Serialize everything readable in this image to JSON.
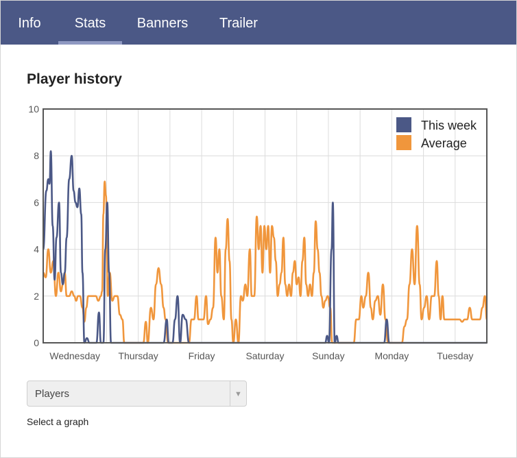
{
  "tabs": [
    {
      "label": "Info",
      "active": false
    },
    {
      "label": "Stats",
      "active": true
    },
    {
      "label": "Banners",
      "active": false
    },
    {
      "label": "Trailer",
      "active": false
    }
  ],
  "section_title": "Player history",
  "select": {
    "value": "Players",
    "caption": "Select a graph"
  },
  "colors": {
    "this_week": "#4b5886",
    "average": "#f0963c",
    "tabbar": "#4b5886"
  },
  "chart_data": {
    "type": "line",
    "yticks": [
      0,
      2,
      4,
      6,
      8,
      10
    ],
    "ylim": [
      0,
      10
    ],
    "xlim": [
      0,
      7
    ],
    "xtick_labels": [
      {
        "x": 0.5,
        "label": "Wednesday"
      },
      {
        "x": 1.5,
        "label": "Thursday"
      },
      {
        "x": 2.5,
        "label": "Friday"
      },
      {
        "x": 3.5,
        "label": "Saturday"
      },
      {
        "x": 4.5,
        "label": "Sunday"
      },
      {
        "x": 5.5,
        "label": "Monday"
      },
      {
        "x": 6.5,
        "label": "Tuesday"
      }
    ],
    "grid": true,
    "legend": "top-right",
    "series": [
      {
        "name": "This week",
        "color": "#4b5886",
        "points": [
          [
            0.0,
            4.0
          ],
          [
            0.05,
            6.5
          ],
          [
            0.08,
            7.0
          ],
          [
            0.1,
            6.8
          ],
          [
            0.12,
            8.2
          ],
          [
            0.15,
            5.0
          ],
          [
            0.18,
            2.7
          ],
          [
            0.21,
            4.5
          ],
          [
            0.25,
            6.0
          ],
          [
            0.28,
            3.0
          ],
          [
            0.31,
            2.5
          ],
          [
            0.34,
            3.0
          ],
          [
            0.37,
            4.5
          ],
          [
            0.41,
            7.0
          ],
          [
            0.45,
            8.0
          ],
          [
            0.48,
            6.5
          ],
          [
            0.51,
            6.0
          ],
          [
            0.54,
            5.8
          ],
          [
            0.57,
            6.6
          ],
          [
            0.6,
            5.5
          ],
          [
            0.62,
            3.0
          ],
          [
            0.65,
            0.0
          ],
          [
            0.69,
            0.2
          ],
          [
            0.73,
            0.0
          ],
          [
            0.84,
            0.0
          ],
          [
            0.88,
            1.3
          ],
          [
            0.91,
            0.0
          ],
          [
            0.95,
            0.0
          ],
          [
            0.98,
            4.0
          ],
          [
            1.01,
            6.0
          ],
          [
            1.04,
            3.0
          ],
          [
            1.07,
            0.0
          ],
          [
            1.12,
            0.0
          ],
          [
            1.9,
            0.0
          ],
          [
            1.95,
            1.0
          ],
          [
            1.98,
            0.0
          ],
          [
            2.04,
            0.0
          ],
          [
            2.08,
            1.0
          ],
          [
            2.12,
            2.0
          ],
          [
            2.16,
            0.0
          ],
          [
            2.2,
            1.2
          ],
          [
            2.25,
            1.0
          ],
          [
            2.3,
            0.0
          ],
          [
            2.35,
            0.0
          ],
          [
            4.45,
            0.0
          ],
          [
            4.48,
            0.3
          ],
          [
            4.51,
            0.0
          ],
          [
            4.55,
            4.0
          ],
          [
            4.57,
            6.0
          ],
          [
            4.6,
            0.0
          ],
          [
            4.63,
            0.3
          ],
          [
            4.66,
            0.0
          ],
          [
            5.38,
            0.0
          ],
          [
            5.42,
            1.0
          ],
          [
            5.46,
            0.0
          ],
          [
            7.0,
            0.0
          ]
        ]
      },
      {
        "name": "Average",
        "color": "#f0963c",
        "points": [
          [
            0.0,
            3.0
          ],
          [
            0.04,
            2.8
          ],
          [
            0.08,
            4.0
          ],
          [
            0.12,
            3.0
          ],
          [
            0.16,
            3.5
          ],
          [
            0.2,
            2.0
          ],
          [
            0.24,
            3.0
          ],
          [
            0.28,
            2.2
          ],
          [
            0.31,
            2.5
          ],
          [
            0.34,
            3.0
          ],
          [
            0.37,
            2.0
          ],
          [
            0.41,
            2.0
          ],
          [
            0.45,
            2.2
          ],
          [
            0.49,
            2.0
          ],
          [
            0.52,
            1.8
          ],
          [
            0.55,
            2.0
          ],
          [
            0.58,
            2.0
          ],
          [
            0.62,
            1.5
          ],
          [
            0.65,
            0.9
          ],
          [
            0.68,
            1.5
          ],
          [
            0.71,
            2.0
          ],
          [
            0.75,
            2.0
          ],
          [
            0.79,
            2.0
          ],
          [
            0.83,
            2.0
          ],
          [
            0.87,
            1.8
          ],
          [
            0.91,
            2.0
          ],
          [
            0.93,
            2.2
          ],
          [
            0.95,
            5.5
          ],
          [
            0.97,
            6.9
          ],
          [
            0.99,
            6.3
          ],
          [
            1.02,
            2.0
          ],
          [
            1.05,
            3.0
          ],
          [
            1.09,
            1.8
          ],
          [
            1.13,
            2.0
          ],
          [
            1.17,
            2.0
          ],
          [
            1.21,
            1.2
          ],
          [
            1.25,
            1.0
          ],
          [
            1.28,
            0.0
          ],
          [
            1.5,
            0.0
          ],
          [
            1.55,
            0.0
          ],
          [
            1.58,
            0.0
          ],
          [
            1.62,
            0.9
          ],
          [
            1.65,
            0.0
          ],
          [
            1.7,
            1.5
          ],
          [
            1.74,
            1.0
          ],
          [
            1.78,
            2.5
          ],
          [
            1.82,
            3.2
          ],
          [
            1.86,
            2.5
          ],
          [
            1.9,
            1.5
          ],
          [
            1.93,
            1.0
          ],
          [
            1.97,
            0.0
          ],
          [
            2.02,
            0.0
          ],
          [
            2.3,
            0.0
          ],
          [
            2.34,
            1.0
          ],
          [
            2.38,
            1.0
          ],
          [
            2.42,
            2.0
          ],
          [
            2.45,
            1.0
          ],
          [
            2.49,
            1.0
          ],
          [
            2.53,
            1.0
          ],
          [
            2.57,
            2.0
          ],
          [
            2.6,
            0.8
          ],
          [
            2.64,
            1.0
          ],
          [
            2.68,
            1.5
          ],
          [
            2.72,
            4.5
          ],
          [
            2.75,
            3.0
          ],
          [
            2.78,
            4.0
          ],
          [
            2.81,
            2.0
          ],
          [
            2.85,
            1.0
          ],
          [
            2.88,
            4.0
          ],
          [
            2.91,
            5.3
          ],
          [
            2.94,
            3.5
          ],
          [
            2.97,
            1.0
          ],
          [
            3.0,
            0.0
          ],
          [
            3.04,
            1.0
          ],
          [
            3.08,
            0.0
          ],
          [
            3.12,
            2.0
          ],
          [
            3.15,
            1.8
          ],
          [
            3.19,
            2.5
          ],
          [
            3.22,
            2.0
          ],
          [
            3.26,
            4.0
          ],
          [
            3.29,
            2.0
          ],
          [
            3.33,
            2.0
          ],
          [
            3.37,
            5.4
          ],
          [
            3.4,
            4.0
          ],
          [
            3.43,
            5.0
          ],
          [
            3.46,
            3.0
          ],
          [
            3.49,
            5.0
          ],
          [
            3.52,
            4.0
          ],
          [
            3.55,
            5.0
          ],
          [
            3.58,
            3.0
          ],
          [
            3.61,
            5.0
          ],
          [
            3.64,
            4.5
          ],
          [
            3.67,
            3.5
          ],
          [
            3.7,
            2.0
          ],
          [
            3.73,
            2.5
          ],
          [
            3.76,
            3.0
          ],
          [
            3.79,
            4.5
          ],
          [
            3.82,
            2.5
          ],
          [
            3.85,
            2.0
          ],
          [
            3.88,
            2.5
          ],
          [
            3.91,
            2.0
          ],
          [
            3.94,
            3.0
          ],
          [
            3.97,
            3.5
          ],
          [
            4.0,
            2.5
          ],
          [
            4.03,
            2.8
          ],
          [
            4.06,
            2.0
          ],
          [
            4.09,
            3.5
          ],
          [
            4.12,
            4.5
          ],
          [
            4.15,
            2.5
          ],
          [
            4.18,
            2.0
          ],
          [
            4.21,
            2.5
          ],
          [
            4.24,
            2.0
          ],
          [
            4.27,
            3.0
          ],
          [
            4.3,
            5.2
          ],
          [
            4.33,
            4.0
          ],
          [
            4.36,
            3.0
          ],
          [
            4.39,
            2.0
          ],
          [
            4.42,
            1.5
          ],
          [
            4.45,
            1.8
          ],
          [
            4.49,
            2.0
          ],
          [
            4.53,
            1.5
          ],
          [
            4.56,
            0.0
          ],
          [
            4.9,
            0.0
          ],
          [
            4.94,
            1.0
          ],
          [
            4.98,
            1.0
          ],
          [
            5.02,
            2.0
          ],
          [
            5.05,
            1.5
          ],
          [
            5.09,
            2.0
          ],
          [
            5.13,
            3.0
          ],
          [
            5.17,
            1.5
          ],
          [
            5.2,
            1.0
          ],
          [
            5.24,
            1.8
          ],
          [
            5.28,
            2.0
          ],
          [
            5.32,
            1.2
          ],
          [
            5.36,
            2.5
          ],
          [
            5.4,
            1.0
          ],
          [
            5.44,
            0.0
          ],
          [
            5.62,
            0.0
          ],
          [
            5.66,
            0.0
          ],
          [
            5.7,
            0.7
          ],
          [
            5.74,
            1.0
          ],
          [
            5.78,
            2.5
          ],
          [
            5.82,
            4.0
          ],
          [
            5.86,
            2.5
          ],
          [
            5.9,
            5.0
          ],
          [
            5.94,
            2.5
          ],
          [
            5.97,
            1.0
          ],
          [
            6.01,
            1.5
          ],
          [
            6.05,
            2.0
          ],
          [
            6.09,
            1.0
          ],
          [
            6.13,
            2.0
          ],
          [
            6.17,
            2.0
          ],
          [
            6.21,
            3.5
          ],
          [
            6.24,
            2.0
          ],
          [
            6.27,
            1.0
          ],
          [
            6.3,
            2.0
          ],
          [
            6.33,
            1.0
          ],
          [
            6.37,
            1.0
          ],
          [
            6.41,
            1.0
          ],
          [
            6.45,
            1.0
          ],
          [
            6.49,
            1.0
          ],
          [
            6.53,
            1.0
          ],
          [
            6.57,
            1.0
          ],
          [
            6.61,
            0.9
          ],
          [
            6.65,
            1.0
          ],
          [
            6.69,
            1.0
          ],
          [
            6.73,
            1.5
          ],
          [
            6.77,
            1.0
          ],
          [
            6.81,
            1.0
          ],
          [
            6.85,
            1.0
          ],
          [
            6.89,
            1.0
          ],
          [
            6.93,
            1.5
          ],
          [
            6.97,
            2.0
          ],
          [
            7.0,
            1.0
          ]
        ]
      }
    ]
  }
}
